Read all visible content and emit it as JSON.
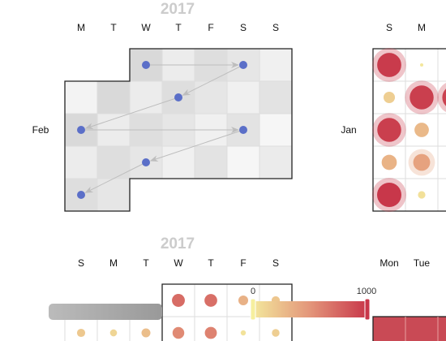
{
  "colors": {
    "scale_low": "#f3e79c",
    "scale_mid": "#e3957a",
    "scale_high": "#c8374a",
    "point": "#5b6fc8",
    "arrow": "#bdbdbd",
    "border": "#222222",
    "cell_grid": "#dddddd"
  },
  "chart_data": [
    {
      "type": "heatmap",
      "subtype": "calendar-scatter",
      "title": "2017",
      "weekday_labels": [
        "M",
        "T",
        "W",
        "T",
        "F",
        "S",
        "S"
      ],
      "month_labels": [
        "Feb"
      ],
      "points": [
        {
          "date": "2017-02-01"
        },
        {
          "date": "2017-02-04"
        },
        {
          "date": "2017-02-09"
        },
        {
          "date": "2017-02-13"
        },
        {
          "date": "2017-02-18"
        },
        {
          "date": "2017-02-22"
        },
        {
          "date": "2017-02-27"
        }
      ],
      "arrows": [
        [
          "2017-02-01",
          "2017-02-04"
        ],
        [
          "2017-02-04",
          "2017-02-09"
        ],
        [
          "2017-02-09",
          "2017-02-13"
        ],
        [
          "2017-02-13",
          "2017-02-18"
        ],
        [
          "2017-02-18",
          "2017-02-22"
        ],
        [
          "2017-02-22",
          "2017-02-27"
        ]
      ]
    },
    {
      "type": "heatmap",
      "subtype": "calendar-bubble",
      "title": "",
      "weekday_labels": [
        "S",
        "M"
      ],
      "month_labels": [
        "Jan"
      ],
      "bubbles": [
        {
          "week": 0,
          "day": "S",
          "value": 980
        },
        {
          "week": 0,
          "day": "M",
          "value": 0
        },
        {
          "week": 1,
          "day": "S",
          "value": 150
        },
        {
          "week": 1,
          "day": "M",
          "value": 960
        },
        {
          "week": 1,
          "day": "T",
          "value": 940
        },
        {
          "week": 2,
          "day": "S",
          "value": 960
        },
        {
          "week": 2,
          "day": "M",
          "value": 280
        },
        {
          "week": 3,
          "day": "S",
          "value": 320
        },
        {
          "week": 3,
          "day": "M",
          "value": 420
        },
        {
          "week": 4,
          "day": "S",
          "value": 1000
        },
        {
          "week": 4,
          "day": "M",
          "value": 40
        }
      ]
    },
    {
      "type": "heatmap",
      "subtype": "calendar-bubble",
      "title": "2017",
      "weekday_labels": [
        "S",
        "M",
        "T",
        "W",
        "T",
        "F",
        "S"
      ],
      "bubbles": [
        {
          "week": 0,
          "day": "W",
          "value": 720
        },
        {
          "week": 0,
          "day": "T",
          "value": 700
        },
        {
          "week": 0,
          "day": "F",
          "value": 330
        },
        {
          "week": 0,
          "day": "S",
          "value": 200
        },
        {
          "week": 1,
          "day": "S",
          "value": 190
        },
        {
          "week": 1,
          "day": "M",
          "value": 110
        },
        {
          "week": 1,
          "day": "T",
          "value": 250
        },
        {
          "week": 1,
          "day": "W",
          "value": 560
        },
        {
          "week": 1,
          "day": "T",
          "value": 600
        },
        {
          "week": 1,
          "day": "F",
          "value": 30
        },
        {
          "week": 1,
          "day": "S",
          "value": 150
        }
      ]
    },
    {
      "type": "heatmap",
      "subtype": "calendar-cells",
      "title": "",
      "weekday_labels": [
        "Mon",
        "Tue"
      ]
    }
  ],
  "visual_map": {
    "min_label": "0",
    "max_label": "1000",
    "range": [
      0,
      1000
    ]
  }
}
